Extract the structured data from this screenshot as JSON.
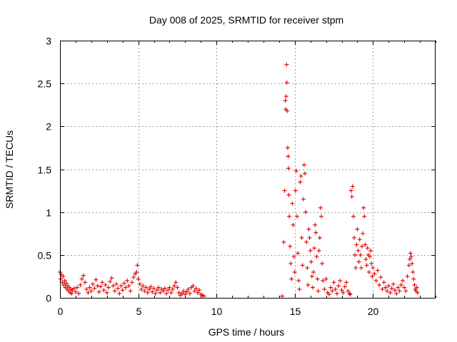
{
  "chart_data": {
    "type": "scatter",
    "title": "Day 008 of 2025, SRMTID for receiver stpm",
    "xlabel": "GPS time / hours",
    "ylabel": "SRMTID / TECUs",
    "xlim": [
      0,
      24
    ],
    "ylim": [
      0,
      3
    ],
    "xticks": [
      0,
      5,
      10,
      15,
      20
    ],
    "yticks": [
      0,
      0.5,
      1,
      1.5,
      2,
      2.5,
      3
    ],
    "xtick_labels": [
      "0",
      "5",
      "10",
      "15",
      "20"
    ],
    "ytick_labels": [
      "0",
      "0.5",
      "1",
      "1.5",
      "2",
      "2.5",
      "3"
    ],
    "grid": true,
    "marker": "+",
    "color": "#e00000",
    "series": [
      {
        "name": "SRMTID",
        "points": [
          [
            0.0,
            0.3
          ],
          [
            0.05,
            0.22
          ],
          [
            0.1,
            0.27
          ],
          [
            0.15,
            0.18
          ],
          [
            0.2,
            0.25
          ],
          [
            0.25,
            0.15
          ],
          [
            0.3,
            0.2
          ],
          [
            0.35,
            0.12
          ],
          [
            0.4,
            0.17
          ],
          [
            0.45,
            0.1
          ],
          [
            0.5,
            0.14
          ],
          [
            0.55,
            0.08
          ],
          [
            0.6,
            0.12
          ],
          [
            0.65,
            0.06
          ],
          [
            0.7,
            0.1
          ],
          [
            0.75,
            0.05
          ],
          [
            0.8,
            0.09
          ],
          [
            0.9,
            0.11
          ],
          [
            1.0,
            0.07
          ],
          [
            1.1,
            0.12
          ],
          [
            1.2,
            0.05
          ],
          [
            1.3,
            0.15
          ],
          [
            1.4,
            0.22
          ],
          [
            1.5,
            0.26
          ],
          [
            1.6,
            0.18
          ],
          [
            1.7,
            0.1
          ],
          [
            1.8,
            0.06
          ],
          [
            1.9,
            0.12
          ],
          [
            2.0,
            0.08
          ],
          [
            2.1,
            0.16
          ],
          [
            2.2,
            0.11
          ],
          [
            2.3,
            0.21
          ],
          [
            2.4,
            0.14
          ],
          [
            2.5,
            0.07
          ],
          [
            2.6,
            0.13
          ],
          [
            2.7,
            0.18
          ],
          [
            2.8,
            0.09
          ],
          [
            2.9,
            0.15
          ],
          [
            3.0,
            0.06
          ],
          [
            3.1,
            0.12
          ],
          [
            3.2,
            0.19
          ],
          [
            3.3,
            0.23
          ],
          [
            3.4,
            0.14
          ],
          [
            3.5,
            0.08
          ],
          [
            3.6,
            0.16
          ],
          [
            3.7,
            0.11
          ],
          [
            3.8,
            0.05
          ],
          [
            3.9,
            0.14
          ],
          [
            4.0,
            0.09
          ],
          [
            4.1,
            0.17
          ],
          [
            4.2,
            0.12
          ],
          [
            4.3,
            0.2
          ],
          [
            4.4,
            0.14
          ],
          [
            4.5,
            0.08
          ],
          [
            4.6,
            0.18
          ],
          [
            4.7,
            0.24
          ],
          [
            4.8,
            0.28
          ],
          [
            4.9,
            0.3
          ],
          [
            4.95,
            0.38
          ],
          [
            5.0,
            0.22
          ],
          [
            5.1,
            0.16
          ],
          [
            5.2,
            0.1
          ],
          [
            5.3,
            0.14
          ],
          [
            5.4,
            0.08
          ],
          [
            5.5,
            0.12
          ],
          [
            5.6,
            0.06
          ],
          [
            5.7,
            0.1
          ],
          [
            5.8,
            0.13
          ],
          [
            5.9,
            0.07
          ],
          [
            6.0,
            0.11
          ],
          [
            6.1,
            0.05
          ],
          [
            6.2,
            0.09
          ],
          [
            6.3,
            0.12
          ],
          [
            6.4,
            0.06
          ],
          [
            6.5,
            0.1
          ],
          [
            6.6,
            0.08
          ],
          [
            6.7,
            0.11
          ],
          [
            6.8,
            0.05
          ],
          [
            6.9,
            0.09
          ],
          [
            7.0,
            0.12
          ],
          [
            7.1,
            0.06
          ],
          [
            7.2,
            0.1
          ],
          [
            7.3,
            0.14
          ],
          [
            7.4,
            0.18
          ],
          [
            7.5,
            0.12
          ],
          [
            7.6,
            0.06
          ],
          [
            7.7,
            0.03
          ],
          [
            7.8,
            0.05
          ],
          [
            7.9,
            0.08
          ],
          [
            8.0,
            0.04
          ],
          [
            8.1,
            0.07
          ],
          [
            8.2,
            0.1
          ],
          [
            8.3,
            0.05
          ],
          [
            8.4,
            0.12
          ],
          [
            8.5,
            0.14
          ],
          [
            8.6,
            0.08
          ],
          [
            8.7,
            0.11
          ],
          [
            8.8,
            0.06
          ],
          [
            8.9,
            0.09
          ],
          [
            9.0,
            0.04
          ],
          [
            9.1,
            0.03
          ],
          [
            9.2,
            0.02
          ],
          [
            14.2,
            0.02
          ],
          [
            14.3,
            0.65
          ],
          [
            14.35,
            1.25
          ],
          [
            14.4,
            2.3
          ],
          [
            14.42,
            2.2
          ],
          [
            14.45,
            2.35
          ],
          [
            14.48,
            2.72
          ],
          [
            14.5,
            2.51
          ],
          [
            14.52,
            2.18
          ],
          [
            14.55,
            1.75
          ],
          [
            14.58,
            1.65
          ],
          [
            14.6,
            1.51
          ],
          [
            14.62,
            1.2
          ],
          [
            14.65,
            0.95
          ],
          [
            14.7,
            0.6
          ],
          [
            14.75,
            0.4
          ],
          [
            14.8,
            0.22
          ],
          [
            14.85,
            1.1
          ],
          [
            14.9,
            0.85
          ],
          [
            14.95,
            0.48
          ],
          [
            15.0,
            0.3
          ],
          [
            15.05,
            1.25
          ],
          [
            15.1,
            1.48
          ],
          [
            15.15,
            0.95
          ],
          [
            15.2,
            0.52
          ],
          [
            15.25,
            0.2
          ],
          [
            15.3,
            0.1
          ],
          [
            15.35,
            1.35
          ],
          [
            15.4,
            1.42
          ],
          [
            15.45,
            0.7
          ],
          [
            15.5,
            0.38
          ],
          [
            15.55,
            1.15
          ],
          [
            15.6,
            1.55
          ],
          [
            15.65,
            1.45
          ],
          [
            15.7,
            1.0
          ],
          [
            15.75,
            0.65
          ],
          [
            15.8,
            0.35
          ],
          [
            15.85,
            0.15
          ],
          [
            15.9,
            0.8
          ],
          [
            15.95,
            0.7
          ],
          [
            16.0,
            0.55
          ],
          [
            16.05,
            0.42
          ],
          [
            16.1,
            0.25
          ],
          [
            16.15,
            0.12
          ],
          [
            16.2,
            0.3
          ],
          [
            16.25,
            0.58
          ],
          [
            16.3,
            0.85
          ],
          [
            16.35,
            0.76
          ],
          [
            16.4,
            0.48
          ],
          [
            16.45,
            0.22
          ],
          [
            16.5,
            0.08
          ],
          [
            16.55,
            0.55
          ],
          [
            16.6,
            0.7
          ],
          [
            16.65,
            1.05
          ],
          [
            16.7,
            0.95
          ],
          [
            16.75,
            0.4
          ],
          [
            16.8,
            0.2
          ],
          [
            16.9,
            0.1
          ],
          [
            17.0,
            0.22
          ],
          [
            17.1,
            0.06
          ],
          [
            17.2,
            0.04
          ],
          [
            17.3,
            0.12
          ],
          [
            17.4,
            0.08
          ],
          [
            17.5,
            0.18
          ],
          [
            17.6,
            0.1
          ],
          [
            17.7,
            0.05
          ],
          [
            17.8,
            0.14
          ],
          [
            17.9,
            0.2
          ],
          [
            18.0,
            0.09
          ],
          [
            18.1,
            0.06
          ],
          [
            18.2,
            0.13
          ],
          [
            18.3,
            0.18
          ],
          [
            18.4,
            0.08
          ],
          [
            18.5,
            0.05
          ],
          [
            18.55,
            0.04
          ],
          [
            18.6,
            1.25
          ],
          [
            18.65,
            1.18
          ],
          [
            18.7,
            1.3
          ],
          [
            18.75,
            0.95
          ],
          [
            18.8,
            0.7
          ],
          [
            18.85,
            0.5
          ],
          [
            18.9,
            0.35
          ],
          [
            18.95,
            0.62
          ],
          [
            19.0,
            0.8
          ],
          [
            19.05,
            0.55
          ],
          [
            19.1,
            0.42
          ],
          [
            19.15,
            0.68
          ],
          [
            19.2,
            0.5
          ],
          [
            19.25,
            0.35
          ],
          [
            19.3,
            0.6
          ],
          [
            19.35,
            0.75
          ],
          [
            19.4,
            1.05
          ],
          [
            19.45,
            0.95
          ],
          [
            19.5,
            0.62
          ],
          [
            19.55,
            0.45
          ],
          [
            19.6,
            0.38
          ],
          [
            19.65,
            0.58
          ],
          [
            19.7,
            0.5
          ],
          [
            19.75,
            0.3
          ],
          [
            19.8,
            0.48
          ],
          [
            19.85,
            0.55
          ],
          [
            19.9,
            0.4
          ],
          [
            19.95,
            0.25
          ],
          [
            20.0,
            0.35
          ],
          [
            20.1,
            0.28
          ],
          [
            20.2,
            0.2
          ],
          [
            20.3,
            0.32
          ],
          [
            20.4,
            0.15
          ],
          [
            20.5,
            0.24
          ],
          [
            20.6,
            0.1
          ],
          [
            20.7,
            0.18
          ],
          [
            20.8,
            0.12
          ],
          [
            20.9,
            0.08
          ],
          [
            21.0,
            0.14
          ],
          [
            21.1,
            0.06
          ],
          [
            21.2,
            0.11
          ],
          [
            21.3,
            0.16
          ],
          [
            21.4,
            0.09
          ],
          [
            21.5,
            0.05
          ],
          [
            21.6,
            0.12
          ],
          [
            21.7,
            0.08
          ],
          [
            21.8,
            0.15
          ],
          [
            21.9,
            0.2
          ],
          [
            22.0,
            0.12
          ],
          [
            22.1,
            0.08
          ],
          [
            22.2,
            0.25
          ],
          [
            22.3,
            0.38
          ],
          [
            22.35,
            0.45
          ],
          [
            22.4,
            0.52
          ],
          [
            22.45,
            0.48
          ],
          [
            22.5,
            0.4
          ],
          [
            22.55,
            0.3
          ],
          [
            22.6,
            0.22
          ],
          [
            22.65,
            0.15
          ],
          [
            22.7,
            0.1
          ],
          [
            22.75,
            0.08
          ],
          [
            22.8,
            0.12
          ],
          [
            22.85,
            0.06
          ]
        ]
      }
    ]
  }
}
